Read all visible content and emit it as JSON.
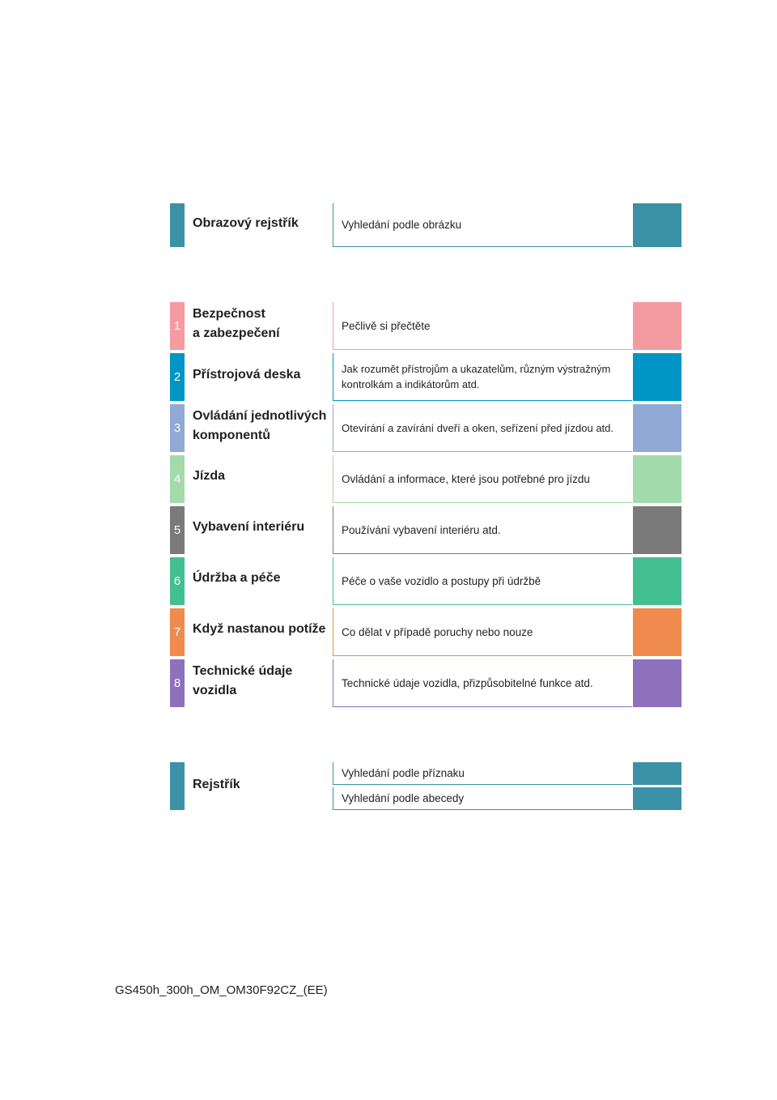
{
  "colors": {
    "teal": "#3b92a7",
    "pink": "#f49ba2",
    "blue": "#0095c4",
    "periwinkle": "#91a9d5",
    "mint": "#a3daab",
    "gray": "#7a7a7a",
    "green": "#44bf91",
    "orange": "#f08b4f",
    "purple": "#8d71bd"
  },
  "top_section": {
    "title": "Obrazový rejstřík",
    "description": "Vyhledání podle obrázku"
  },
  "chapters": [
    {
      "number": "1",
      "title_line1": "Bezpečnost",
      "title_line2": "a zabezpečení",
      "description_line1": "Pečlivě si přečtěte",
      "description_line2": ""
    },
    {
      "number": "2",
      "title_line1": "Přístrojová deska",
      "title_line2": "",
      "description_line1": "Jak rozumět přístrojům a ukazatelům, různým výstražným",
      "description_line2": "kontrolkám a indikátorům atd."
    },
    {
      "number": "3",
      "title_line1": "Ovládání jednotlivých",
      "title_line2": "komponentů",
      "description_line1": "Otevírání a zavírání dveří a oken, seřízení před jízdou atd.",
      "description_line2": ""
    },
    {
      "number": "4",
      "title_line1": "Jízda",
      "title_line2": "",
      "description_line1": "Ovládání a informace, které jsou potřebné pro jízdu",
      "description_line2": ""
    },
    {
      "number": "5",
      "title_line1": "Vybavení interiéru",
      "title_line2": "",
      "description_line1": "Používání vybavení interiéru atd.",
      "description_line2": ""
    },
    {
      "number": "6",
      "title_line1": "Údržba a péče",
      "title_line2": "",
      "description_line1": "Péče o vaše vozidlo a postupy při údržbě",
      "description_line2": ""
    },
    {
      "number": "7",
      "title_line1": "Když nastanou potíže",
      "title_line2": "",
      "description_line1": "Co dělat v případě poruchy nebo nouze",
      "description_line2": ""
    },
    {
      "number": "8",
      "title_line1": "Technické údaje",
      "title_line2": "vozidla",
      "description_line1": "Technické údaje vozidla, přizpůsobitelné funkce atd.",
      "description_line2": ""
    }
  ],
  "index_section": {
    "title": "Rejstřík",
    "items": [
      "Vyhledání podle příznaku",
      "Vyhledání podle abecedy"
    ]
  },
  "footer": {
    "code": "GS450h_300h_OM_OM30F92CZ_(EE)"
  }
}
